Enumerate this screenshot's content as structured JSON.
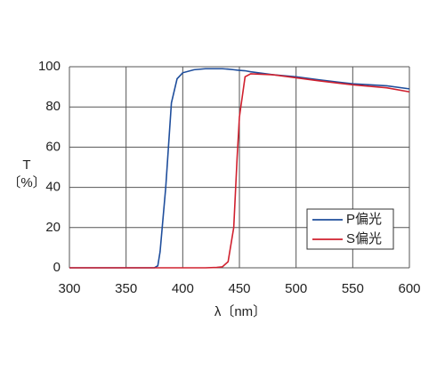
{
  "chart_data": {
    "type": "line",
    "x_label": "λ〔nm〕",
    "y_label": "T",
    "y_unit": "〔%〕",
    "x": [
      300,
      350,
      370,
      375,
      378,
      380,
      385,
      390,
      395,
      400,
      410,
      420,
      430,
      435,
      440,
      445,
      448,
      450,
      455,
      460,
      480,
      500,
      520,
      550,
      580,
      600
    ],
    "series": [
      {
        "name": "P偏光",
        "color": "#1f4e9c",
        "values": [
          0,
          0,
          0,
          0,
          1,
          8,
          40,
          82,
          94,
          97,
          98.5,
          99,
          99,
          99,
          98.8,
          98.5,
          98.3,
          98.2,
          98,
          97.5,
          96,
          95,
          93.5,
          91.5,
          90.5,
          89
        ]
      },
      {
        "name": "S偏光",
        "color": "#d0202e",
        "values": [
          0,
          0,
          0,
          0,
          0,
          0,
          0,
          0,
          0,
          0,
          0,
          0,
          0.2,
          0.5,
          3,
          20,
          55,
          75,
          95,
          96.5,
          96,
          94.5,
          93,
          91,
          89.5,
          87.5
        ]
      }
    ],
    "xlim": [
      300,
      600
    ],
    "ylim": [
      0,
      100
    ],
    "xticks": [
      300,
      350,
      400,
      450,
      500,
      550,
      600
    ],
    "yticks": [
      0,
      20,
      40,
      60,
      80,
      100
    ],
    "grid": true,
    "legend": "lower right"
  }
}
